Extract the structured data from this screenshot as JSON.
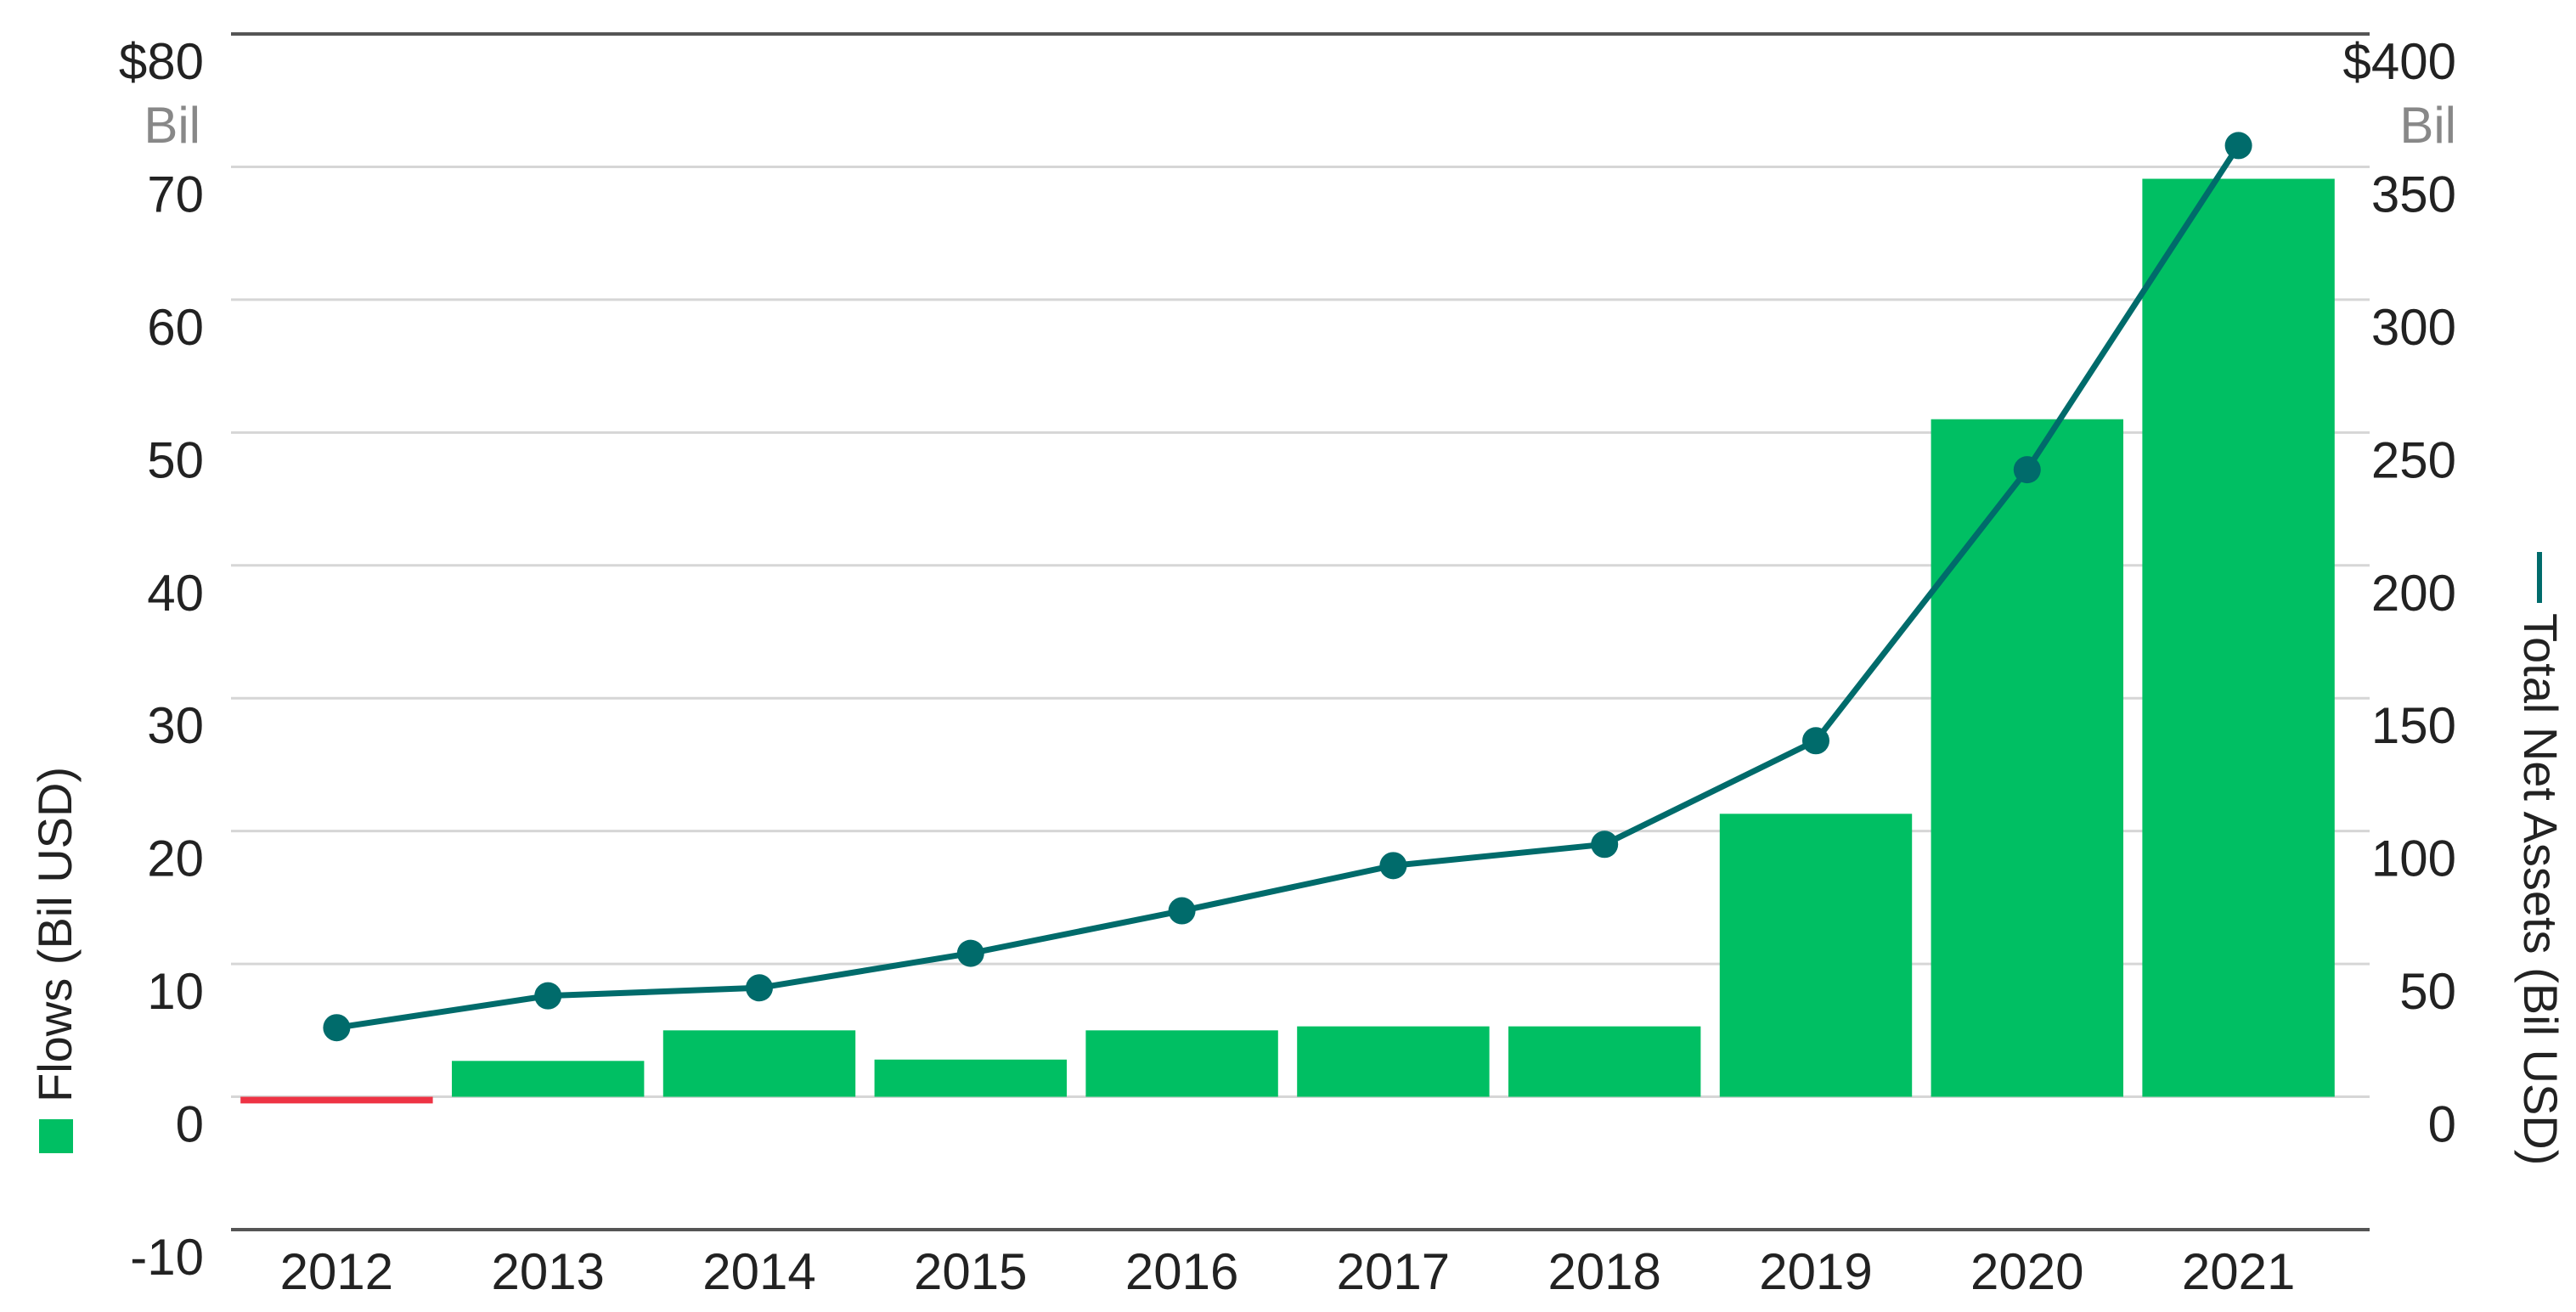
{
  "chart_data": {
    "type": "bar",
    "title": "",
    "categories": [
      "2012",
      "2013",
      "2014",
      "2015",
      "2016",
      "2017",
      "2018",
      "2019",
      "2020",
      "2021"
    ],
    "series": [
      {
        "name": "Flows (Bil USD)",
        "axis": "left",
        "type": "bar",
        "values": [
          -0.5,
          2.7,
          5.0,
          2.8,
          5.0,
          5.3,
          5.3,
          21.3,
          51.0,
          69.1
        ]
      },
      {
        "name": "Total Net Assets (Bil USD)",
        "axis": "right",
        "type": "line",
        "values": [
          26,
          38,
          41,
          54,
          70,
          87,
          95,
          134,
          236,
          358
        ]
      }
    ],
    "y_left": {
      "label": "Flows (Bil USD)",
      "ylim": [
        -10,
        80
      ],
      "ticks": [
        "-10",
        "0",
        "10",
        "20",
        "30",
        "40",
        "50",
        "60",
        "70",
        "$80"
      ],
      "unit": "Bil"
    },
    "y_right": {
      "label": "Total Net Assets (Bil USD)",
      "ylim": [
        -50,
        400
      ],
      "ticks": [
        "0",
        "50",
        "100",
        "150",
        "200",
        "250",
        "300",
        "350",
        "$400"
      ],
      "unit": "Bil"
    },
    "grid": true,
    "legend": "axis-titles",
    "colors": {
      "bar": "#00bf63",
      "negative_bar": "#ee3344",
      "line": "#006b6b",
      "grid": "#d6d6d6",
      "axis_line": "#555555"
    }
  }
}
